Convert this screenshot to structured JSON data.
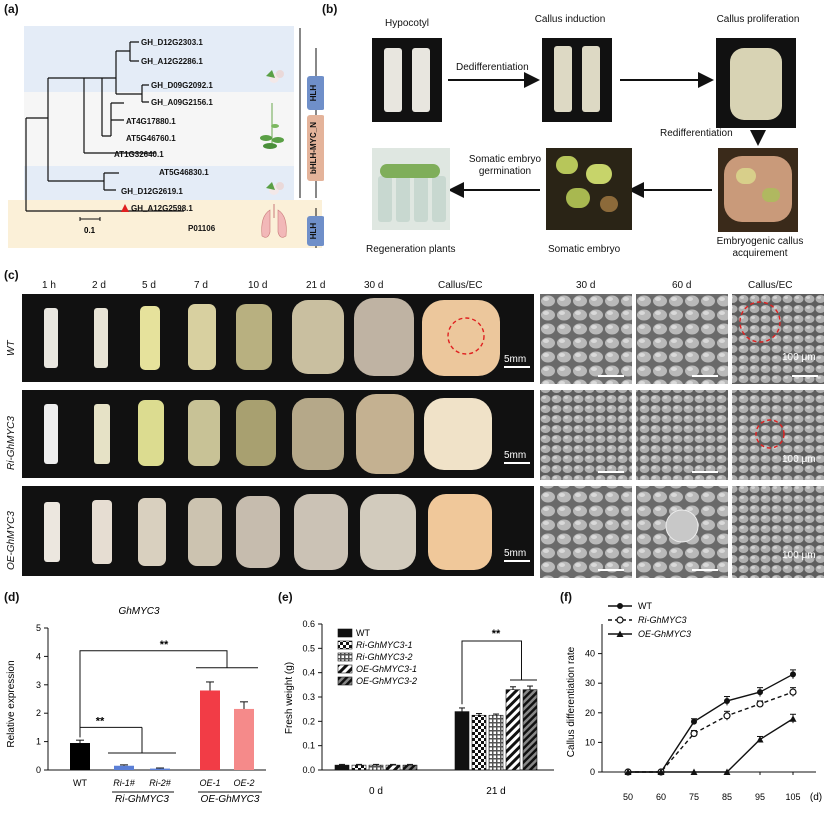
{
  "panels": {
    "a": "(a)",
    "b": "(b)",
    "c": "(c)",
    "d": "(d)",
    "e": "(e)",
    "f": "(f)"
  },
  "panel_a": {
    "genes": [
      "GH_D12G2303.1",
      "GH_A12G2286.1",
      "GH_D09G2092.1",
      "GH_A09G2156.1",
      "AT4G17880.1",
      "AT5G46760.1",
      "AT1G32640.1",
      "AT5G46830.1",
      "GH_D12G2619.1",
      "GH_A12G2598.1",
      "P01106"
    ],
    "scale": "0.1",
    "domains": [
      "HLH",
      "bHLH-MYC_N",
      "HLH"
    ],
    "colors": {
      "blue_band": "#e4ecf7",
      "yellow_band": "#fbf0d8",
      "domain_blue": "#6f8fc9",
      "domain_tan": "#e4b39a",
      "marker": "#e02020"
    }
  },
  "panel_b": {
    "steps": [
      "Hypocotyl",
      "Callus induction",
      "Callus proliferation",
      "Embryogenic callus acquirement",
      "Somatic embryo",
      "Regeneration plants"
    ],
    "arrows": [
      "Dedifferentiation",
      "Redifferentiation",
      "Somatic embryo germination"
    ]
  },
  "panel_c": {
    "timepoints": [
      "1 h",
      "2 d",
      "5 d",
      "7 d",
      "10 d",
      "21 d",
      "30 d",
      "Callus/EC"
    ],
    "sem_timepoints": [
      "30 d",
      "60 d",
      "Callus/EC"
    ],
    "rows": [
      "WT",
      "Ri-GhMYC3",
      "OE-GhMYC3"
    ],
    "scale_photo": "5mm",
    "scale_sem": "100 μm"
  },
  "chart_data": [
    {
      "type": "bar",
      "title": "GhMYC3",
      "ylabel": "Relative expression",
      "categories": [
        "WT",
        "Ri-1#",
        "Ri-2#",
        "OE-1",
        "OE-2"
      ],
      "group_labels": [
        "Ri-GhMYC3",
        "OE-GhMYC3"
      ],
      "values": [
        0.95,
        0.15,
        0.05,
        2.8,
        2.15
      ],
      "errors": [
        0.1,
        0.03,
        0.02,
        0.3,
        0.25
      ],
      "colors": [
        "#000000",
        "#5b7fd6",
        "#5b7fd6",
        "#f23c46",
        "#f58a8a"
      ],
      "ylim": [
        0,
        5
      ],
      "yticks": [
        "0",
        "1",
        "2",
        "3",
        "4",
        "5"
      ],
      "significance": [
        "**",
        "**"
      ]
    },
    {
      "type": "bar",
      "ylabel": "Fresh weight (g)",
      "categories": [
        "0 d",
        "21 d"
      ],
      "series": [
        {
          "name": "WT",
          "values": [
            0.02,
            0.24
          ],
          "errors": [
            0.003,
            0.015
          ]
        },
        {
          "name": "Ri-GhMYC3-1",
          "values": [
            0.02,
            0.225
          ],
          "errors": [
            0.003,
            0.007
          ]
        },
        {
          "name": "Ri-GhMYC3-2",
          "values": [
            0.02,
            0.225
          ],
          "errors": [
            0.003,
            0.005
          ]
        },
        {
          "name": "OE-GhMYC3-1",
          "values": [
            0.02,
            0.33
          ],
          "errors": [
            0.003,
            0.012
          ]
        },
        {
          "name": "OE-GhMYC3-2",
          "values": [
            0.02,
            0.33
          ],
          "errors": [
            0.003,
            0.015
          ]
        }
      ],
      "ylim": [
        0,
        0.6
      ],
      "yticks": [
        "0.0",
        "0.1",
        "0.2",
        "0.3",
        "0.4",
        "0.5",
        "0.6"
      ],
      "significance": [
        "**"
      ],
      "legend": "top-left"
    },
    {
      "type": "line",
      "ylabel": "Callus differentiation rate",
      "x": [
        50,
        60,
        75,
        85,
        95,
        105
      ],
      "xlabel_unit": "(d)",
      "xticks": [
        "50",
        "60",
        "75",
        "85",
        "95",
        "105"
      ],
      "series": [
        {
          "name": "WT",
          "values": [
            0,
            0,
            17,
            24,
            27,
            33
          ],
          "errors": [
            0,
            0,
            1,
            1.5,
            1.5,
            1.5
          ]
        },
        {
          "name": "Ri-GhMYC3",
          "values": [
            0,
            0,
            13,
            19,
            23,
            27
          ],
          "errors": [
            0,
            0,
            1,
            1.5,
            1,
            1.5
          ]
        },
        {
          "name": "OE-GhMYC3",
          "values": [
            0,
            0,
            0,
            0,
            11,
            18
          ],
          "errors": [
            0,
            0,
            0,
            0,
            1,
            1.5
          ]
        }
      ],
      "ylim": [
        0,
        50
      ],
      "yticks": [
        "0",
        "10",
        "20",
        "30",
        "40"
      ],
      "legend": "top-left"
    }
  ]
}
